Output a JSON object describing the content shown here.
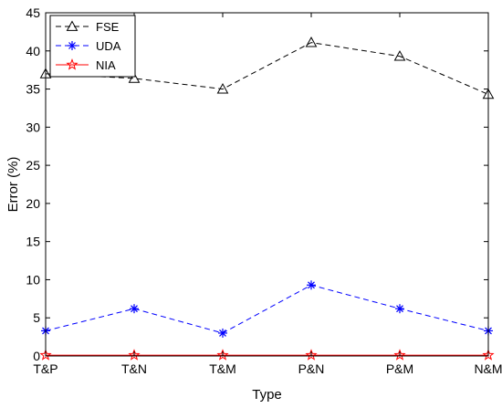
{
  "chart_data": {
    "type": "line",
    "title": "",
    "xlabel": "Type",
    "ylabel": "Error (%)",
    "categories": [
      "T&P",
      "T&N",
      "T&M",
      "P&N",
      "P&M",
      "N&M"
    ],
    "ylim": [
      0,
      45
    ],
    "yticks": [
      0,
      5,
      10,
      15,
      20,
      25,
      30,
      35,
      40,
      45
    ],
    "grid": false,
    "legend_position": "top-left",
    "series": [
      {
        "name": "FSE",
        "values": [
          37.0,
          36.4,
          35.0,
          41.1,
          39.3,
          34.3
        ],
        "color": "#000000",
        "marker": "triangle",
        "dashed": true
      },
      {
        "name": "UDA",
        "values": [
          3.3,
          6.2,
          3.0,
          9.3,
          6.2,
          3.3
        ],
        "color": "#0000ff",
        "marker": "asterisk",
        "dashed": true
      },
      {
        "name": "NIA",
        "values": [
          0.1,
          0.1,
          0.1,
          0.1,
          0.1,
          0.1
        ],
        "color": "#ff0000",
        "marker": "star",
        "dashed": false
      }
    ]
  }
}
